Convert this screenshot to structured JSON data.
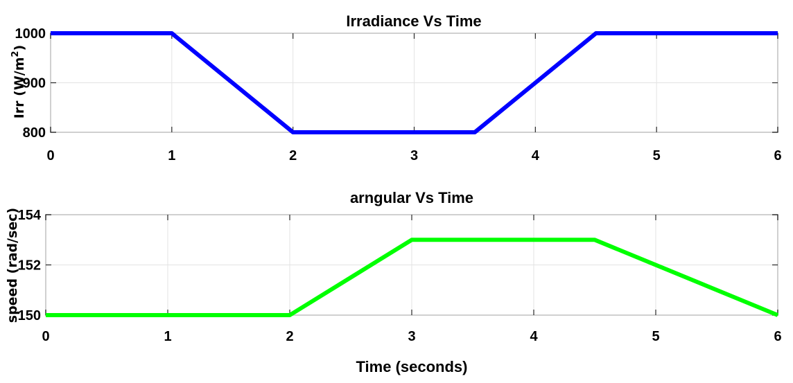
{
  "chart_data": [
    {
      "type": "line",
      "title": "Irradiance Vs Time",
      "ylabel": "Irr (W/m",
      "ylabel_sup": "2",
      "ylabel_close": ")",
      "xlabel": "",
      "xlim": [
        0,
        6
      ],
      "ylim": [
        800,
        1000
      ],
      "xticks": [
        0,
        1,
        2,
        3,
        4,
        5,
        6
      ],
      "yticks": [
        800,
        900,
        1000
      ],
      "grid": true,
      "series": [
        {
          "color": "#0000ff",
          "x": [
            0,
            1,
            2,
            3.5,
            4.5,
            6
          ],
          "y": [
            1000,
            1000,
            800,
            800,
            1000,
            1000
          ]
        }
      ]
    },
    {
      "type": "line",
      "title": "arngular Vs Time",
      "ylabel": "speed (rad/sec)",
      "xlabel": "Time (seconds)",
      "xlim": [
        0,
        6
      ],
      "ylim": [
        150,
        154
      ],
      "xticks": [
        0,
        1,
        2,
        3,
        4,
        5,
        6
      ],
      "yticks": [
        150,
        152,
        154
      ],
      "grid": true,
      "series": [
        {
          "color": "#00ff00",
          "x": [
            0,
            2,
            3,
            4.5,
            6
          ],
          "y": [
            150,
            150,
            153,
            153,
            150
          ]
        }
      ]
    }
  ]
}
